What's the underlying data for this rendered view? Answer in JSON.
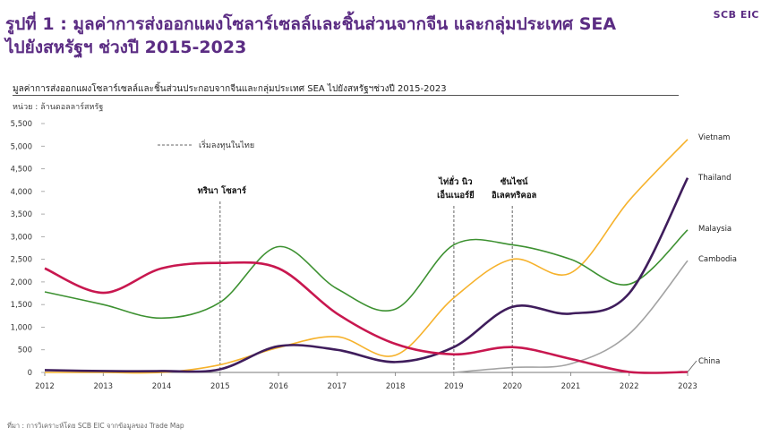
{
  "header": {
    "title_line1": "รูปที่ 1 : มูลค่าการส่งออกแผงโซลาร์เซลล์และชิ้นส่วนจากจีน และกลุ่มประเทศ SEA",
    "title_line2": "ไปยังสหรัฐฯ ช่วงปี 2015-2023",
    "brand": "SCB EIC"
  },
  "footer": {
    "source": "ที่มา : การวิเคราะห์โดย SCB EIC จากข้อมูลของ Trade Map"
  },
  "chart_data": {
    "type": "line",
    "title": "มูลค่าการส่งออกแผงโซลาร์เซลล์และชิ้นส่วนประกอบจากจีนและกลุ่มประเทศ SEA ไปยังสหรัฐฯช่วงปี 2015-2023",
    "unit": "หน่วย : ล้านดอลลาร์สหรัฐ",
    "x": [
      2012,
      2013,
      2014,
      2015,
      2016,
      2017,
      2018,
      2019,
      2020,
      2021,
      2022,
      2023
    ],
    "x_ticks": [
      "2012",
      "2013",
      "2014",
      "2015",
      "2016",
      "2017",
      "2018",
      "2019",
      "2020",
      "2021",
      "2022",
      "2023"
    ],
    "ylim": [
      0,
      5500
    ],
    "y_ticks": [
      0,
      500,
      1000,
      1500,
      2000,
      2500,
      3000,
      3500,
      4000,
      4500,
      5000,
      5500
    ],
    "y_tick_labels": [
      "0",
      "500",
      "1,000",
      "1,500",
      "2,000",
      "2,500",
      "3,000",
      "3,500",
      "4,000",
      "4,500",
      "5,000",
      "5,500"
    ],
    "grid": false,
    "legend": [
      {
        "label": "เริ่มลงทุนในไทย",
        "style": "dashed"
      }
    ],
    "series": [
      {
        "name": "China",
        "color": "#c8174f",
        "values": [
          2300,
          1760,
          2300,
          2420,
          2300,
          1300,
          630,
          400,
          560,
          300,
          10,
          10
        ]
      },
      {
        "name": "Vietnam",
        "color": "#f6b22c",
        "values": [
          0,
          0,
          0,
          170,
          550,
          790,
          380,
          1650,
          2500,
          2200,
          3800,
          5150
        ]
      },
      {
        "name": "Thailand",
        "color": "#3f1d5c",
        "values": [
          50,
          30,
          30,
          70,
          580,
          500,
          230,
          560,
          1450,
          1300,
          1750,
          4300
        ]
      },
      {
        "name": "Malaysia",
        "color": "#3d9131",
        "values": [
          1780,
          1500,
          1200,
          1550,
          2780,
          1850,
          1400,
          2820,
          2820,
          2500,
          1950,
          3150
        ]
      },
      {
        "name": "Cambodia",
        "color": "#a3a3a3",
        "values": [
          null,
          null,
          null,
          null,
          null,
          null,
          null,
          0,
          110,
          190,
          850,
          2470
        ]
      }
    ],
    "annotations": [
      {
        "label_lines": [
          "ทรินา โซลาร์"
        ],
        "x": 2015
      },
      {
        "label_lines": [
          "ไท่ฮั่ว นิว",
          "เอ็นเนอร์ยี"
        ],
        "x": 2019
      },
      {
        "label_lines": [
          "ซันไซน์",
          "อิเลคทริคอล"
        ],
        "x": 2020
      }
    ]
  }
}
